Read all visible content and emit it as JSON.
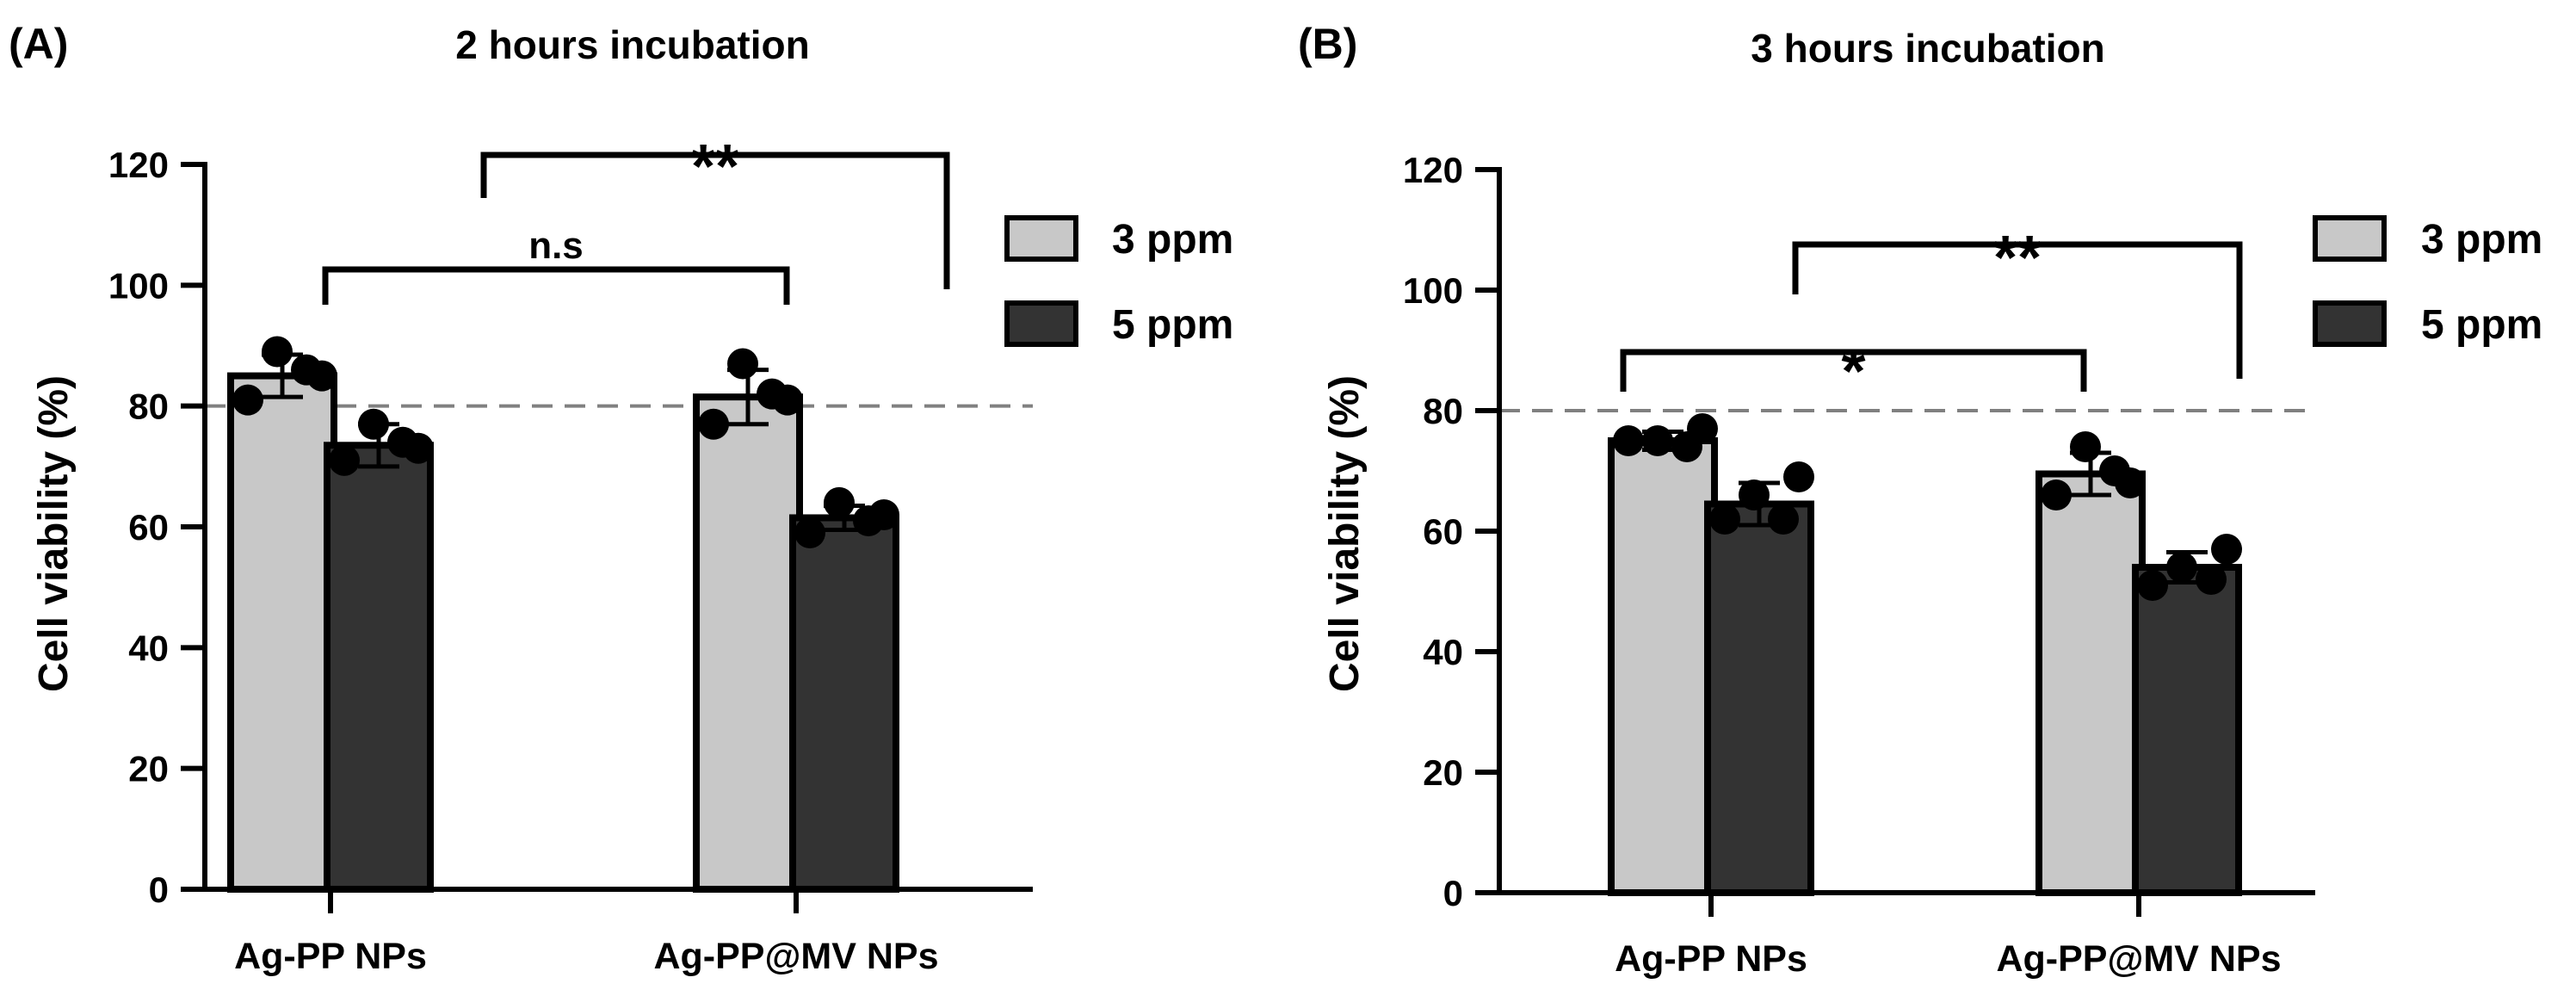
{
  "colors": {
    "ppm3": "#c8c8c8",
    "ppm5": "#333333",
    "outline": "#000000",
    "threshold": "#808080",
    "dot": "#000000"
  },
  "chart_data": [
    {
      "panel_label": "(A)",
      "type": "bar",
      "title": "2 hours incubation",
      "ylabel": "Cell viability (%)",
      "xlabel": "",
      "ylim": [
        0,
        120
      ],
      "yticks": [
        "0",
        "20",
        "40",
        "60",
        "80",
        "100",
        "120"
      ],
      "categories": [
        "Ag-PP NPs",
        "Ag-PP@MV NPs"
      ],
      "legend": [
        "3 ppm",
        "5 ppm"
      ],
      "legend_position": "right",
      "threshold": 80,
      "series": [
        {
          "name": "3 ppm",
          "values": [
            85,
            81.5
          ],
          "errors": [
            3.5,
            4.5
          ],
          "points": [
            [
              89,
              86,
              81,
              85
            ],
            [
              87,
              82,
              77,
              81
            ]
          ]
        },
        {
          "name": "5 ppm",
          "values": [
            73.5,
            61.5
          ],
          "errors": [
            3.5,
            2
          ],
          "points": [
            [
              77,
              74,
              71,
              73
            ],
            [
              64,
              61,
              59,
              62
            ]
          ]
        }
      ],
      "significance": [
        {
          "label": "n.s",
          "from": "Ag-PP NPs",
          "to": "Ag-PP@MV NPs"
        },
        {
          "label": "**",
          "from": "Ag-PP NPs",
          "to": "Ag-PP@MV NPs"
        }
      ]
    },
    {
      "panel_label": "(B)",
      "type": "bar",
      "title": "3 hours incubation",
      "ylabel": "Cell viability (%)",
      "xlabel": "",
      "ylim": [
        0,
        120
      ],
      "yticks": [
        "0",
        "20",
        "40",
        "60",
        "80",
        "100",
        "120"
      ],
      "categories": [
        "Ag-PP NPs",
        "Ag-PP@MV NPs"
      ],
      "legend": [
        "3 ppm",
        "5 ppm"
      ],
      "legend_position": "right",
      "threshold": 80,
      "series": [
        {
          "name": "3 ppm",
          "values": [
            75,
            69.5
          ],
          "errors": [
            1.5,
            3.5
          ],
          "points": [
            [
              75,
              74,
              75,
              77
            ],
            [
              74,
              70,
              66,
              68
            ]
          ]
        },
        {
          "name": "5 ppm",
          "values": [
            64.5,
            54
          ],
          "errors": [
            3.5,
            2.5
          ],
          "points": [
            [
              66,
              62,
              62,
              69
            ],
            [
              54,
              52,
              51,
              57
            ]
          ]
        }
      ],
      "significance": [
        {
          "label": "*",
          "from": "Ag-PP NPs",
          "to": "Ag-PP@MV NPs"
        },
        {
          "label": "**",
          "from": "Ag-PP NPs",
          "to": "Ag-PP@MV NPs"
        }
      ]
    }
  ]
}
